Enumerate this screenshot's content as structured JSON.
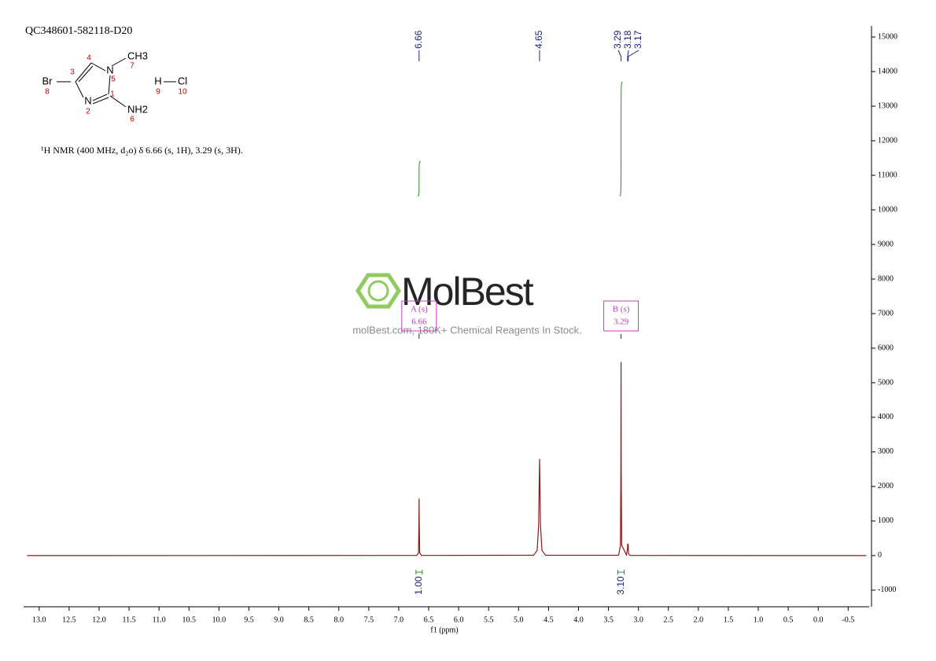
{
  "chart_data": {
    "type": "nmr",
    "sample_id": "QC348601-582118-D20",
    "structure": {
      "atoms": [
        {
          "label": "Br",
          "number": "8"
        },
        {
          "label": "",
          "number": "3"
        },
        {
          "label": "",
          "number": "4"
        },
        {
          "label": "N",
          "number": "5"
        },
        {
          "label": "CH3",
          "number": "7"
        },
        {
          "label": "",
          "number": "1"
        },
        {
          "label": "N",
          "number": "2"
        },
        {
          "label": "NH2",
          "number": "6"
        },
        {
          "label": "H",
          "number": "9"
        },
        {
          "label": "Cl",
          "number": "10"
        }
      ]
    },
    "description": "¹H NMR (400 MHz, d₂o) δ 6.66 (s, 1H), 3.29 (s, 3H).",
    "watermark": {
      "logo": "MolBest",
      "tagline": "molBest.com, 180K+ Chemical Reagents In Stock."
    },
    "x_label": "f1 (ppm)",
    "xlim": [
      13.26,
      -0.85
    ],
    "xticks": [
      {
        "value": 13,
        "label": "13.0"
      },
      12.5,
      {
        "value": 12,
        "label": "12.0"
      },
      11.5,
      {
        "value": 11,
        "label": "11.0"
      },
      10.5,
      {
        "value": 10,
        "label": "10.0"
      },
      9.5,
      {
        "value": 9,
        "label": "9.0"
      },
      8.5,
      {
        "value": 8,
        "label": "8.0"
      },
      7.5,
      {
        "value": 7,
        "label": "7.0"
      },
      6.5,
      {
        "value": 6,
        "label": "6.0"
      },
      5.5,
      {
        "value": 5,
        "label": "5.0"
      },
      4.5,
      {
        "value": 4,
        "label": "4.0"
      },
      3.5,
      {
        "value": 3,
        "label": "3.0"
      },
      2.5,
      {
        "value": 2,
        "label": "2.0"
      },
      1.5,
      {
        "value": 1,
        "label": "1.0"
      },
      0.5,
      {
        "value": 0,
        "label": "0.0"
      },
      -0.5
    ],
    "ylim": [
      -1480,
      15320
    ],
    "yticks": [
      -1000,
      0,
      1000,
      2000,
      3000,
      4000,
      5000,
      6000,
      7000,
      8000,
      9000,
      10000,
      11000,
      12000,
      13000,
      14000,
      15000
    ],
    "color": "#8b1a1a",
    "x": [
      13.2,
      6.7,
      6.67,
      6.663,
      6.66,
      6.657,
      6.65,
      6.62,
      4.75,
      4.69,
      4.665,
      4.655,
      4.65,
      4.645,
      4.635,
      4.61,
      4.55,
      3.33,
      3.3,
      3.293,
      3.29,
      3.287,
      3.28,
      3.2,
      3.182,
      3.18,
      3.177,
      3.172,
      3.17,
      3.165,
      3.14,
      -0.8
    ],
    "values": [
      0,
      5,
      80,
      900,
      1650,
      900,
      80,
      5,
      10,
      150,
      900,
      2200,
      2800,
      2200,
      900,
      150,
      10,
      10,
      300,
      2500,
      5600,
      2500,
      300,
      20,
      200,
      350,
      250,
      330,
      300,
      50,
      5,
      0
    ],
    "peak_labels": [
      6.66,
      4.65,
      3.29,
      3.18,
      3.17
    ],
    "integrals": {
      "x": [
        6.66,
        3.29
      ],
      "values": [
        1.0,
        3.1
      ],
      "value_labels": [
        "1.00",
        "3.10"
      ],
      "curve_bottom": [
        10400,
        10400
      ],
      "curve_top": [
        11400,
        13700
      ],
      "color": "#2e8b2e"
    },
    "multiplets": [
      {
        "name": "A (s)",
        "shift": 6.66
      },
      {
        "name": "B (s)",
        "shift": 3.29
      }
    ],
    "multiplet_color": "#c040c0",
    "peak_label_color": "#1a237e"
  }
}
